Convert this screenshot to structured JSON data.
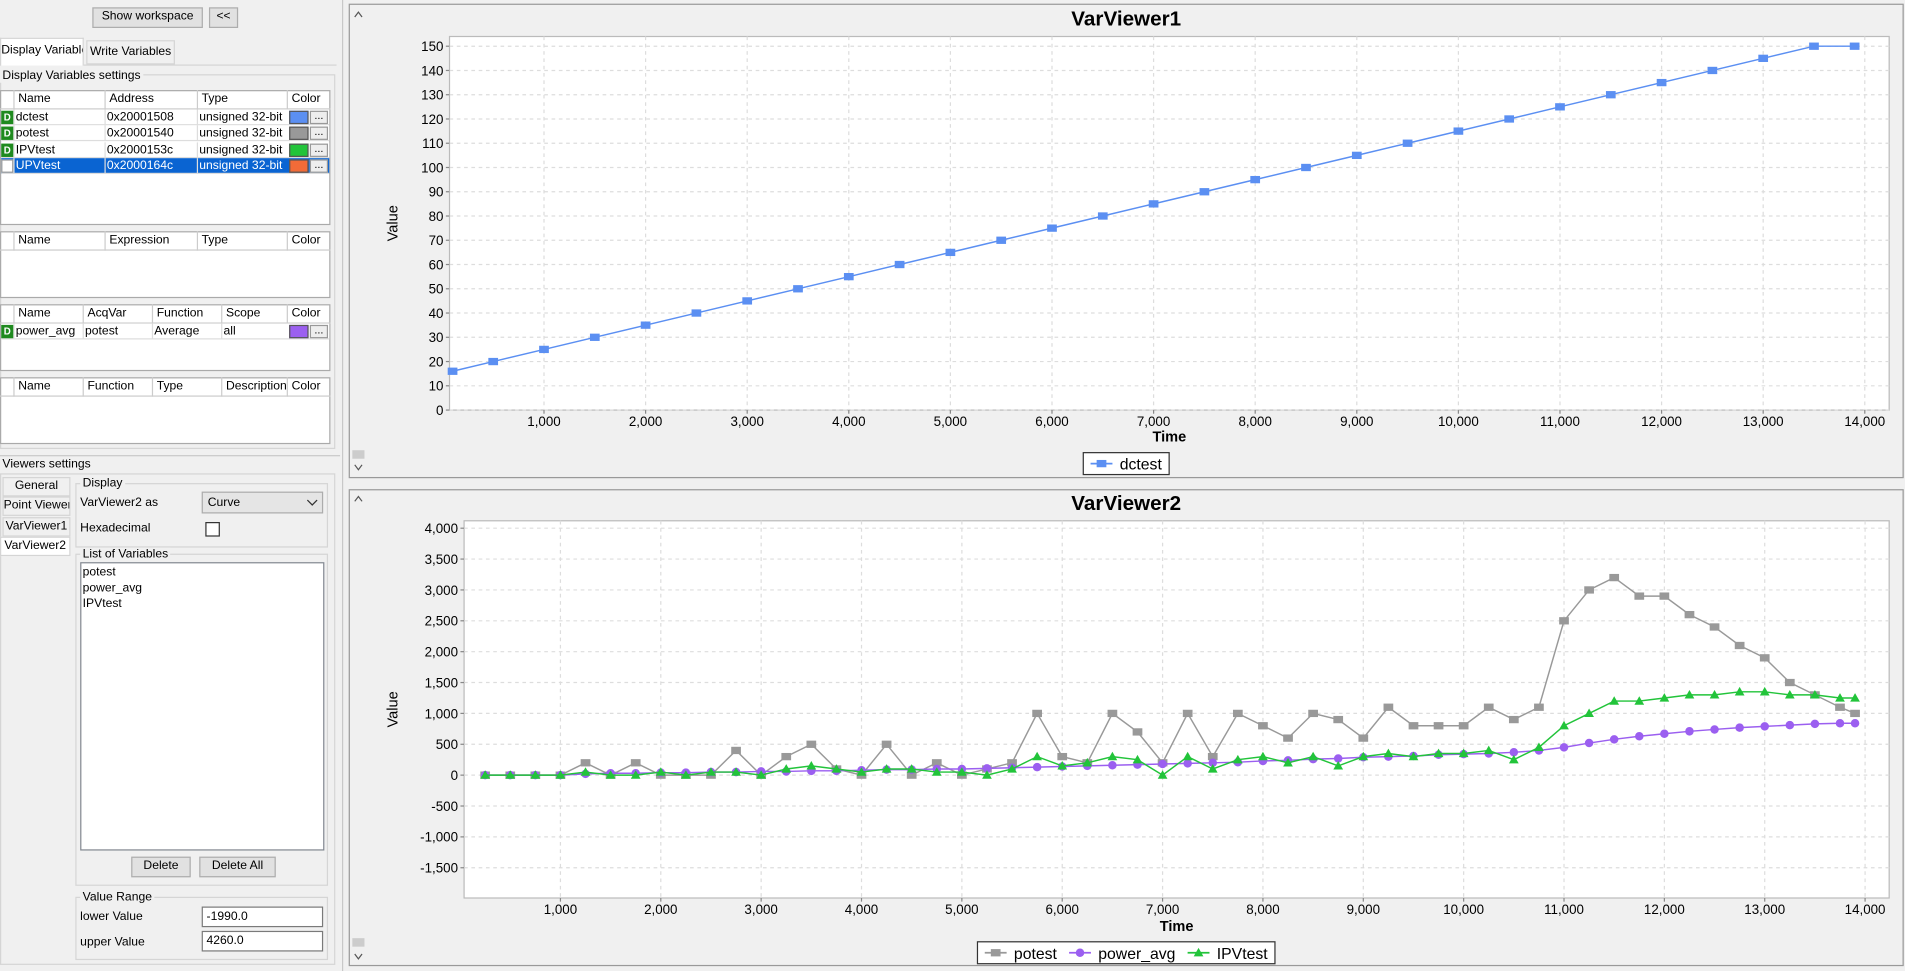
{
  "toolbar": {
    "show_workspace": "Show workspace",
    "collapse": "<<"
  },
  "tabs": [
    "Display Variables",
    "Write Variables"
  ],
  "display_settings": {
    "title": "Display Variables settings",
    "color_button": "...",
    "variables": {
      "headers": [
        "Name",
        "Address",
        "Type",
        "Color"
      ],
      "rows": [
        {
          "flag": "D",
          "cells": [
            "dctest",
            "0x20001508",
            "unsigned 32-bit"
          ],
          "color": "#5b8ff2"
        },
        {
          "flag": "D",
          "cells": [
            "potest",
            "0x20001540",
            "unsigned 32-bit"
          ],
          "color": "#999999"
        },
        {
          "flag": "D",
          "cells": [
            "IPVtest",
            "0x2000153c",
            "unsigned 32-bit"
          ],
          "color": "#22c43a"
        },
        {
          "cells": [
            "UPVtest",
            "0x2000164c",
            "unsigned 32-bit"
          ],
          "color": "#f26b38",
          "selected": true
        }
      ]
    },
    "expressions": {
      "headers": [
        "Name",
        "Expression",
        "Type",
        "Color"
      ],
      "rows": []
    },
    "statistics": {
      "headers": [
        "Name",
        "AcqVar",
        "Function",
        "Scope",
        "Color"
      ],
      "rows": [
        {
          "flag": "D",
          "cells": [
            "power_avg",
            "potest",
            "Average",
            "all"
          ],
          "color": "#9b5ff0"
        }
      ]
    },
    "functions": {
      "headers": [
        "Name",
        "Function",
        "Type",
        "Description",
        "Color"
      ],
      "rows": []
    }
  },
  "viewers_settings": {
    "title": "Viewers settings",
    "tabs": [
      "General",
      "Point Viewer",
      "VarViewer1",
      "VarViewer2"
    ],
    "display": {
      "title": "Display",
      "as_label": "VarViewer2 as",
      "as_value": "Curve",
      "hex_label": "Hexadecimal"
    },
    "list": {
      "title": "List of Variables",
      "items": [
        "potest",
        "power_avg",
        "IPVtest"
      ],
      "delete": "Delete",
      "delete_all": "Delete All"
    },
    "range": {
      "title": "Value Range",
      "lower_label": "lower Value",
      "lower": "-1990.0",
      "upper_label": "upper Value",
      "upper": "4260.0"
    }
  },
  "chart_data": [
    {
      "type": "line",
      "title": "VarViewer1",
      "x_label": "Time",
      "y_label": "Value",
      "grid": true,
      "xlim": [
        70,
        14240
      ],
      "ylim": [
        0,
        154
      ],
      "xticks": [
        {
          "value": 1000,
          "label": "1,000"
        },
        {
          "value": 2000,
          "label": "2,000"
        },
        {
          "value": 3000,
          "label": "3,000"
        },
        {
          "value": 4000,
          "label": "4,000"
        },
        {
          "value": 5000,
          "label": "5,000"
        },
        {
          "value": 6000,
          "label": "6,000"
        },
        {
          "value": 7000,
          "label": "7,000"
        },
        {
          "value": 8000,
          "label": "8,000"
        },
        {
          "value": 9000,
          "label": "9,000"
        },
        {
          "value": 10000,
          "label": "10,000"
        },
        {
          "value": 11000,
          "label": "11,000"
        },
        {
          "value": 12000,
          "label": "12,000"
        },
        {
          "value": 13000,
          "label": "13,000"
        },
        {
          "value": 14000,
          "label": "14,000"
        }
      ],
      "yticks": [
        0,
        10,
        20,
        30,
        40,
        50,
        60,
        70,
        80,
        90,
        100,
        110,
        120,
        130,
        140,
        150
      ],
      "x": [
        100,
        500,
        1000,
        1500,
        2000,
        2500,
        3000,
        3500,
        4000,
        4500,
        5000,
        5500,
        6000,
        6500,
        7000,
        7500,
        8000,
        8500,
        9000,
        9500,
        10000,
        10500,
        11000,
        11500,
        12000,
        12500,
        13000,
        13500,
        13900
      ],
      "series": [
        {
          "name": "dctest",
          "color": "#5b8ff2",
          "marker": "square",
          "values": [
            16,
            20,
            25,
            30,
            35,
            40,
            45,
            50,
            55,
            60,
            65,
            70,
            75,
            80,
            85,
            90,
            95,
            100,
            105,
            110,
            115,
            120,
            125,
            130,
            135,
            140,
            145,
            150,
            150
          ]
        }
      ]
    },
    {
      "type": "line",
      "title": "VarViewer2",
      "x_label": "Time",
      "y_label": "Value",
      "grid": true,
      "xlim": [
        40,
        14240
      ],
      "ylim": [
        -1990,
        4120
      ],
      "xticks": [
        {
          "value": 1000,
          "label": "1,000"
        },
        {
          "value": 2000,
          "label": "2,000"
        },
        {
          "value": 3000,
          "label": "3,000"
        },
        {
          "value": 4000,
          "label": "4,000"
        },
        {
          "value": 5000,
          "label": "5,000"
        },
        {
          "value": 6000,
          "label": "6,000"
        },
        {
          "value": 7000,
          "label": "7,000"
        },
        {
          "value": 8000,
          "label": "8,000"
        },
        {
          "value": 9000,
          "label": "9,000"
        },
        {
          "value": 10000,
          "label": "10,000"
        },
        {
          "value": 11000,
          "label": "11,000"
        },
        {
          "value": 12000,
          "label": "12,000"
        },
        {
          "value": 13000,
          "label": "13,000"
        },
        {
          "value": 14000,
          "label": "14,000"
        }
      ],
      "yticks": [
        {
          "value": -1500,
          "label": "-1,500"
        },
        {
          "value": -1000,
          "label": "-1,000"
        },
        -500,
        0,
        500,
        {
          "value": 1000,
          "label": "1,000"
        },
        {
          "value": 1500,
          "label": "1,500"
        },
        {
          "value": 2000,
          "label": "2,000"
        },
        {
          "value": 2500,
          "label": "2,500"
        },
        {
          "value": 3000,
          "label": "3,000"
        },
        {
          "value": 3500,
          "label": "3,500"
        },
        {
          "value": 4000,
          "label": "4,000"
        }
      ],
      "x": [
        250,
        500,
        750,
        1000,
        1250,
        1500,
        1750,
        2000,
        2250,
        2500,
        2750,
        3000,
        3250,
        3500,
        3750,
        4000,
        4250,
        4500,
        4750,
        5000,
        5250,
        5500,
        5750,
        6000,
        6250,
        6500,
        6750,
        7000,
        7250,
        7500,
        7750,
        8000,
        8250,
        8500,
        8750,
        9000,
        9250,
        9500,
        9750,
        10000,
        10250,
        10500,
        10750,
        11000,
        11250,
        11500,
        11750,
        12000,
        12250,
        12500,
        12750,
        13000,
        13250,
        13500,
        13750,
        13900
      ],
      "series": [
        {
          "name": "potest",
          "color": "#999999",
          "marker": "square",
          "values": [
            0,
            0,
            0,
            0,
            200,
            0,
            200,
            0,
            0,
            0,
            400,
            0,
            300,
            500,
            100,
            0,
            500,
            0,
            200,
            0,
            100,
            200,
            1000,
            300,
            200,
            1000,
            700,
            200,
            1000,
            300,
            1000,
            800,
            600,
            1000,
            900,
            600,
            1100,
            800,
            800,
            800,
            1100,
            900,
            1100,
            2500,
            3000,
            3200,
            2900,
            2900,
            2600,
            2400,
            2100,
            1900,
            1500,
            1300,
            1100,
            1000
          ]
        },
        {
          "name": "power_avg",
          "color": "#9b5ff0",
          "marker": "circle",
          "values": [
            0,
            0,
            0,
            0,
            20,
            30,
            30,
            40,
            40,
            50,
            50,
            60,
            60,
            70,
            70,
            80,
            90,
            90,
            100,
            100,
            110,
            120,
            130,
            140,
            150,
            160,
            170,
            180,
            190,
            200,
            210,
            230,
            240,
            260,
            270,
            290,
            300,
            310,
            330,
            340,
            350,
            370,
            400,
            450,
            520,
            580,
            630,
            670,
            710,
            740,
            770,
            790,
            810,
            830,
            840,
            840
          ]
        },
        {
          "name": "IPVtest",
          "color": "#22c43a",
          "marker": "triangle",
          "values": [
            0,
            0,
            0,
            0,
            50,
            0,
            0,
            50,
            0,
            50,
            50,
            0,
            100,
            150,
            100,
            50,
            100,
            100,
            50,
            50,
            0,
            100,
            300,
            150,
            200,
            300,
            250,
            0,
            300,
            100,
            250,
            300,
            200,
            300,
            150,
            300,
            350,
            300,
            350,
            350,
            400,
            250,
            450,
            800,
            1000,
            1200,
            1200,
            1250,
            1300,
            1300,
            1350,
            1350,
            1300,
            1300,
            1250,
            1250
          ]
        }
      ]
    }
  ]
}
